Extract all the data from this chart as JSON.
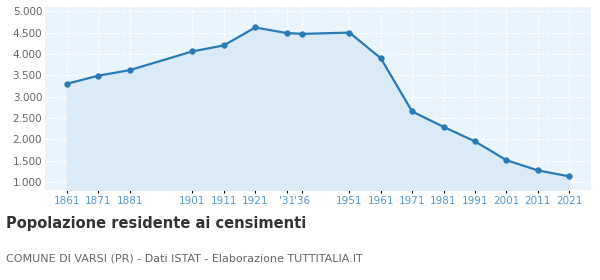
{
  "years": [
    1861,
    1871,
    1881,
    1901,
    1911,
    1921,
    1931,
    1936,
    1951,
    1961,
    1971,
    1981,
    1991,
    2001,
    2011,
    2021
  ],
  "population": [
    3300,
    3490,
    3620,
    4060,
    4200,
    4620,
    4490,
    4470,
    4500,
    3900,
    2650,
    2290,
    1950,
    1510,
    1270,
    1130
  ],
  "ylim": [
    800,
    5100
  ],
  "yticks": [
    1000,
    1500,
    2000,
    2500,
    3000,
    3500,
    4000,
    4500,
    5000
  ],
  "line_color": "#2a7ab5",
  "fill_color": "#daeaf7",
  "marker_color": "#2a7ab5",
  "bg_color": "#eaf4fc",
  "grid_color": "#ffffff",
  "title": "Popolazione residente ai censimenti",
  "subtitle": "COMUNE DI VARSI (PR) - Dati ISTAT - Elaborazione TUTTITALIA.IT",
  "title_fontsize": 10.5,
  "subtitle_fontsize": 8,
  "tick_label_color": "#5599cc",
  "ytick_label_color": "#666666",
  "tick_label_fontsize": 7.5,
  "xlim_left": 1854,
  "xlim_right": 2028
}
